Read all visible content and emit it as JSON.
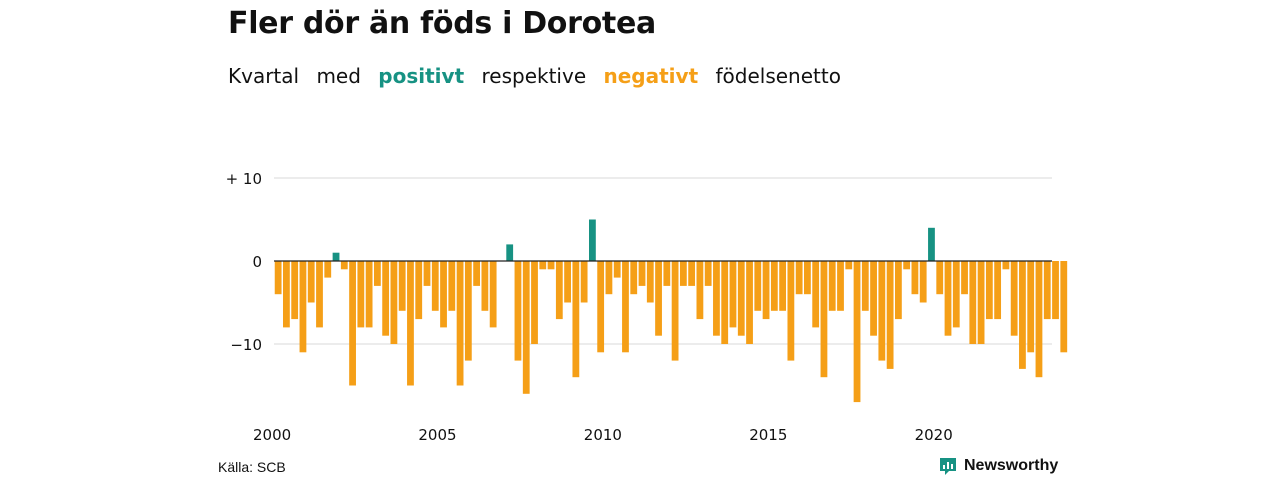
{
  "header": {
    "title": "Fler dör än föds i Dorotea",
    "subtitle_parts": [
      "Kvartal",
      "med",
      "positivt",
      "respektive",
      "negativt",
      "födelsenetto"
    ]
  },
  "colors": {
    "positive": "#179283",
    "negative": "#f59f17",
    "grid": "#d9d9d9",
    "text": "#111111"
  },
  "chart_data": {
    "type": "bar",
    "title": "Fler dör än föds i Dorotea",
    "subtitle": "Kvartal med positivt respektive negativt födelsenetto",
    "x_start": 2000.0,
    "x_step": 0.25,
    "values": [
      -4,
      -8,
      -7,
      -11,
      -5,
      -8,
      -2,
      1,
      -1,
      -15,
      -8,
      -8,
      -3,
      -9,
      -10,
      -6,
      -15,
      -7,
      -3,
      -6,
      -8,
      -6,
      -15,
      -12,
      -3,
      -6,
      -8,
      0,
      2,
      -12,
      -16,
      -10,
      -1,
      -1,
      -7,
      -5,
      -14,
      -5,
      5,
      -11,
      -4,
      -2,
      -11,
      -4,
      -3,
      -5,
      -9,
      -3,
      -12,
      -3,
      -3,
      -7,
      -3,
      -9,
      -10,
      -8,
      -9,
      -10,
      -6,
      -7,
      -6,
      -6,
      -12,
      -4,
      -4,
      -8,
      -14,
      -6,
      -6,
      -1,
      -17,
      -6,
      -9,
      -12,
      -13,
      -7,
      -1,
      -4,
      -5,
      4,
      -4,
      -9,
      -8,
      -4,
      -10,
      -10,
      -7,
      -7,
      -1,
      -9,
      -13,
      -11,
      -14,
      -7,
      -7,
      -11
    ],
    "xticks": [
      2000,
      2005,
      2010,
      2015,
      2020
    ],
    "yticks": [
      {
        "value": 10,
        "label": "+ 10"
      },
      {
        "value": 0,
        "label": "0"
      },
      {
        "value": -10,
        "label": "−10"
      }
    ],
    "ylim": [
      -18,
      11
    ],
    "grid": true,
    "xlabel": "",
    "ylabel": ""
  },
  "footer": {
    "source": "Källa: SCB",
    "brand": "Newsworthy",
    "brand_icon": "newsworthy-logo-icon"
  }
}
